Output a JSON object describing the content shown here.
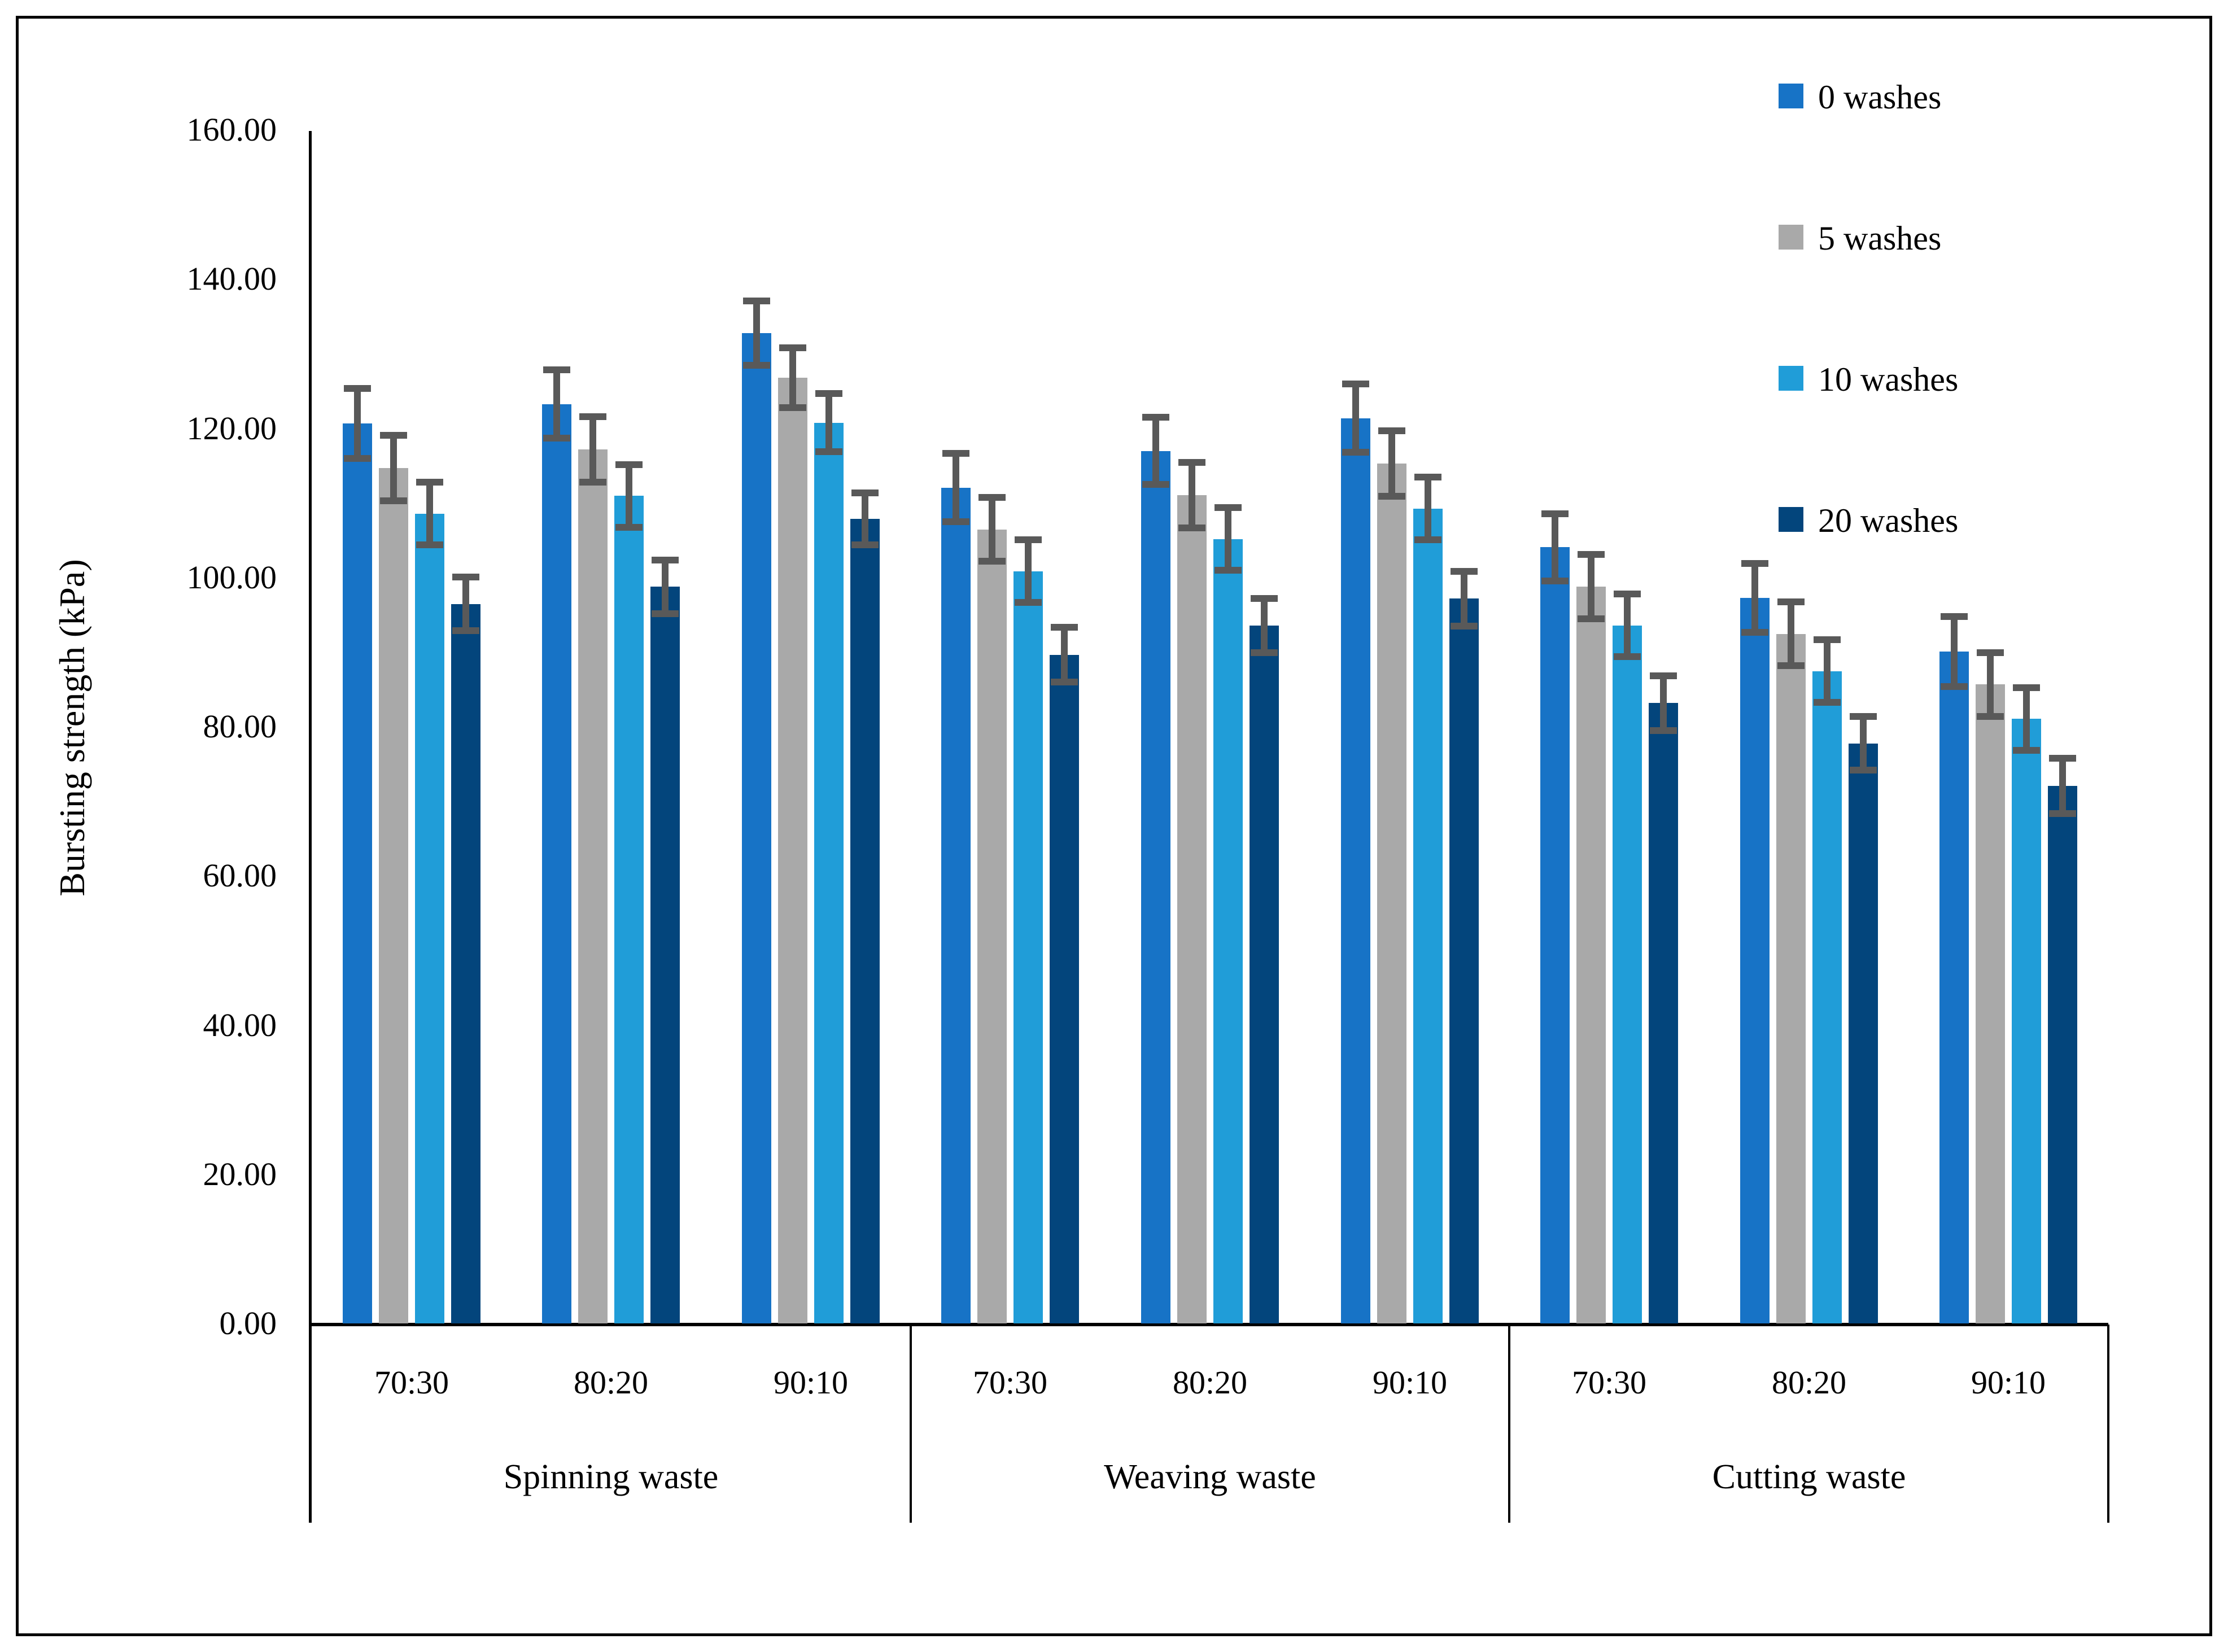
{
  "y_axis": {
    "title": "Bursting strength (kPa)",
    "tick_labels": [
      "0.00",
      "20.00",
      "40.00",
      "60.00",
      "80.00",
      "100.00",
      "120.00",
      "140.00",
      "160.00"
    ],
    "min": 0,
    "max": 160,
    "step": 20
  },
  "legend": {
    "items": [
      {
        "label": "0 washes",
        "color": "#1773C6"
      },
      {
        "label": "5 washes",
        "color": "#A9A9A9"
      },
      {
        "label": "10 washes",
        "color": "#209DD8"
      },
      {
        "label": "20 washes",
        "color": "#03457C"
      }
    ]
  },
  "x_axis": {
    "groups": [
      {
        "label": "Spinning waste",
        "ratios": [
          "70:30",
          "80:20",
          "90:10"
        ]
      },
      {
        "label": "Weaving waste",
        "ratios": [
          "70:30",
          "80:20",
          "90:10"
        ]
      },
      {
        "label": "Cutting waste",
        "ratios": [
          "70:30",
          "80:20",
          "90:10"
        ]
      }
    ]
  },
  "chart_data": {
    "type": "bar",
    "title": "",
    "xlabel": "",
    "ylabel": "Bursting strength (kPa)",
    "ylim": [
      0,
      160
    ],
    "ytick_step": 20,
    "grid": false,
    "legend_position": "top-right",
    "error_bar_color": "#595959",
    "groups": [
      "Spinning waste",
      "Weaving waste",
      "Cutting waste"
    ],
    "categories": [
      "Spinning waste 70:30",
      "Spinning waste 80:20",
      "Spinning waste 90:10",
      "Weaving waste 70:30",
      "Weaving waste 80:20",
      "Weaving waste 90:10",
      "Cutting waste 70:30",
      "Cutting waste 80:20",
      "Cutting waste 90:10"
    ],
    "series": [
      {
        "name": "0 washes",
        "color": "#1773C6",
        "values": [
          120.8,
          123.4,
          132.9,
          112.2,
          117.1,
          121.5,
          104.2,
          97.4,
          90.2
        ],
        "errors": [
          4.7,
          4.6,
          4.3,
          4.6,
          4.5,
          4.6,
          4.5,
          4.6,
          4.7
        ]
      },
      {
        "name": "5 washes",
        "color": "#A9A9A9",
        "values": [
          114.8,
          117.3,
          126.9,
          106.6,
          111.2,
          115.4,
          98.9,
          92.6,
          85.8
        ],
        "errors": [
          4.4,
          4.4,
          4.0,
          4.3,
          4.4,
          4.4,
          4.3,
          4.3,
          4.3
        ]
      },
      {
        "name": "10 washes",
        "color": "#209DD8",
        "values": [
          108.7,
          111.1,
          120.9,
          101.0,
          105.3,
          109.4,
          93.7,
          87.6,
          81.2
        ],
        "errors": [
          4.2,
          4.2,
          3.9,
          4.2,
          4.2,
          4.2,
          4.2,
          4.2,
          4.2
        ]
      },
      {
        "name": "20 washes",
        "color": "#03457C",
        "values": [
          96.6,
          98.9,
          108.0,
          89.8,
          93.7,
          97.3,
          83.3,
          77.9,
          72.2
        ],
        "errors": [
          3.6,
          3.6,
          3.5,
          3.7,
          3.6,
          3.7,
          3.7,
          3.6,
          3.7
        ]
      }
    ]
  }
}
